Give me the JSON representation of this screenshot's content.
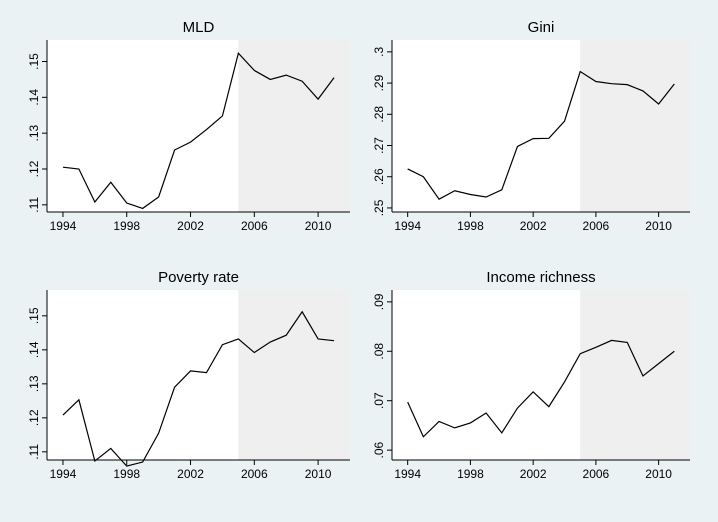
{
  "chart_data": [
    {
      "type": "line",
      "title": "MLD",
      "x": [
        1994,
        1995,
        1996,
        1997,
        1998,
        1999,
        2000,
        2001,
        2002,
        2003,
        2004,
        2005,
        2006,
        2007,
        2008,
        2009,
        2010,
        2011
      ],
      "values": [
        0.1205,
        0.12,
        0.1108,
        0.1163,
        0.1105,
        0.109,
        0.1122,
        0.1253,
        0.1275,
        0.131,
        0.1348,
        0.1523,
        0.1475,
        0.145,
        0.1462,
        0.1445,
        0.1395,
        0.1455
      ],
      "color": "#000000",
      "xlim": [
        1993,
        2012
      ],
      "ylim": [
        0.108,
        0.156
      ],
      "xticks": [
        1994,
        1998,
        2002,
        2006,
        2010
      ],
      "yticks": [
        {
          "value": 0.11,
          "label": ".11"
        },
        {
          "value": 0.12,
          "label": ".12"
        },
        {
          "value": 0.13,
          "label": ".13"
        },
        {
          "value": 0.14,
          "label": ".14"
        },
        {
          "value": 0.15,
          "label": ".15"
        }
      ],
      "shade_from": 2005
    },
    {
      "type": "line",
      "title": "Gini",
      "x": [
        1994,
        1995,
        1996,
        1997,
        1998,
        1999,
        2000,
        2001,
        2002,
        2003,
        2004,
        2005,
        2006,
        2007,
        2008,
        2009,
        2010,
        2011
      ],
      "values": [
        0.2625,
        0.26,
        0.2528,
        0.2555,
        0.2543,
        0.2535,
        0.2558,
        0.2697,
        0.2722,
        0.2723,
        0.2778,
        0.2937,
        0.2905,
        0.2898,
        0.2895,
        0.2875,
        0.2833,
        0.2897
      ],
      "color": "#000000",
      "xlim": [
        1993,
        2012
      ],
      "ylim": [
        0.2487,
        0.3038
      ],
      "xticks": [
        1994,
        1998,
        2002,
        2006,
        2010
      ],
      "yticks": [
        {
          "value": 0.25,
          "label": ".25"
        },
        {
          "value": 0.26,
          "label": ".26"
        },
        {
          "value": 0.27,
          "label": ".27"
        },
        {
          "value": 0.28,
          "label": ".28"
        },
        {
          "value": 0.29,
          "label": ".29"
        },
        {
          "value": 0.3,
          "label": ".3"
        }
      ],
      "shade_from": 2005
    },
    {
      "type": "line",
      "title": "Poverty rate",
      "x": [
        1994,
        1995,
        1996,
        1997,
        1998,
        1999,
        2000,
        2001,
        2002,
        2003,
        2004,
        2005,
        2006,
        2007,
        2008,
        2009,
        2010,
        2011
      ],
      "values": [
        0.1208,
        0.1253,
        0.1073,
        0.111,
        0.1058,
        0.107,
        0.1155,
        0.129,
        0.1338,
        0.1333,
        0.1415,
        0.1432,
        0.1392,
        0.1423,
        0.1443,
        0.1512,
        0.1432,
        0.1427
      ],
      "color": "#000000",
      "xlim": [
        1993,
        2012
      ],
      "ylim": [
        0.1076,
        0.1576
      ],
      "xticks": [
        1994,
        1998,
        2002,
        2006,
        2010
      ],
      "yticks": [
        {
          "value": 0.11,
          "label": ".11"
        },
        {
          "value": 0.12,
          "label": ".12"
        },
        {
          "value": 0.13,
          "label": ".13"
        },
        {
          "value": 0.14,
          "label": ".14"
        },
        {
          "value": 0.15,
          "label": ".15"
        }
      ],
      "shade_from": 2005
    },
    {
      "type": "line",
      "title": "Income richness",
      "x": [
        1994,
        1995,
        1996,
        1997,
        1998,
        1999,
        2000,
        2001,
        2002,
        2003,
        2004,
        2005,
        2006,
        2007,
        2008,
        2009,
        2010,
        2011
      ],
      "values": [
        0.0697,
        0.0627,
        0.0658,
        0.0645,
        0.0655,
        0.0675,
        0.0635,
        0.0685,
        0.0718,
        0.0688,
        0.0738,
        0.0795,
        0.0808,
        0.0822,
        0.0818,
        0.075,
        0.0775,
        0.08
      ],
      "color": "#000000",
      "xlim": [
        1993,
        2012
      ],
      "ylim": [
        0.058,
        0.0924
      ],
      "xticks": [
        1994,
        1998,
        2002,
        2006,
        2010
      ],
      "yticks": [
        {
          "value": 0.06,
          "label": ".06"
        },
        {
          "value": 0.07,
          "label": ".07"
        },
        {
          "value": 0.08,
          "label": ".08"
        },
        {
          "value": 0.09,
          "label": ".09"
        }
      ],
      "shade_from": 2005
    }
  ]
}
